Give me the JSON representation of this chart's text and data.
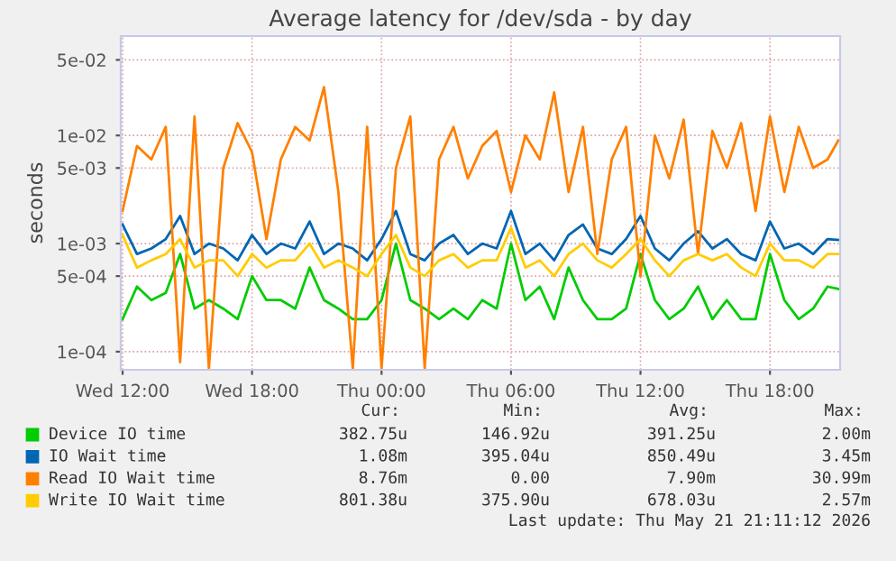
{
  "chart_data": {
    "type": "line",
    "title": "Average latency for /dev/sda - by day",
    "ylabel": "seconds",
    "x": [
      "2026-05-20T12:00",
      "2026-05-20T12:40",
      "2026-05-20T13:20",
      "2026-05-20T14:00",
      "2026-05-20T14:40",
      "2026-05-20T15:20",
      "2026-05-20T16:00",
      "2026-05-20T16:40",
      "2026-05-20T17:20",
      "2026-05-20T18:00",
      "2026-05-20T18:40",
      "2026-05-20T19:20",
      "2026-05-20T20:00",
      "2026-05-20T20:40",
      "2026-05-20T21:20",
      "2026-05-20T22:00",
      "2026-05-20T22:40",
      "2026-05-20T23:20",
      "2026-05-21T00:00",
      "2026-05-21T00:40",
      "2026-05-21T01:20",
      "2026-05-21T02:00",
      "2026-05-21T02:40",
      "2026-05-21T03:20",
      "2026-05-21T04:00",
      "2026-05-21T04:40",
      "2026-05-21T05:20",
      "2026-05-21T06:00",
      "2026-05-21T06:40",
      "2026-05-21T07:20",
      "2026-05-21T08:00",
      "2026-05-21T08:40",
      "2026-05-21T09:20",
      "2026-05-21T10:00",
      "2026-05-21T10:40",
      "2026-05-21T11:20",
      "2026-05-21T12:00",
      "2026-05-21T12:40",
      "2026-05-21T13:20",
      "2026-05-21T14:00",
      "2026-05-21T14:40",
      "2026-05-21T15:20",
      "2026-05-21T16:00",
      "2026-05-21T16:40",
      "2026-05-21T17:20",
      "2026-05-21T18:00",
      "2026-05-21T18:40",
      "2026-05-21T19:20",
      "2026-05-21T20:00",
      "2026-05-21T20:40",
      "2026-05-21T21:10"
    ],
    "series": [
      {
        "name": "Device IO time",
        "color": "#00cc00",
        "values": [
          0.0002,
          0.0004,
          0.0003,
          0.00035,
          0.0008,
          0.00025,
          0.0003,
          0.00025,
          0.0002,
          0.0005,
          0.0003,
          0.0003,
          0.00025,
          0.0006,
          0.0003,
          0.00025,
          0.0002,
          0.0002,
          0.0003,
          0.001,
          0.0003,
          0.00025,
          0.0002,
          0.00025,
          0.0002,
          0.0003,
          0.00025,
          0.001,
          0.0003,
          0.0004,
          0.0002,
          0.0006,
          0.0003,
          0.0002,
          0.0002,
          0.00025,
          0.0008,
          0.0003,
          0.0002,
          0.00025,
          0.0004,
          0.0002,
          0.0003,
          0.0002,
          0.0002,
          0.0008,
          0.0003,
          0.0002,
          0.00025,
          0.0004,
          0.00038
        ]
      },
      {
        "name": "IO Wait time",
        "color": "#0066b3",
        "values": [
          0.0015,
          0.0008,
          0.0009,
          0.0011,
          0.0018,
          0.0008,
          0.001,
          0.0009,
          0.0007,
          0.0012,
          0.0008,
          0.001,
          0.0009,
          0.0016,
          0.0008,
          0.001,
          0.0009,
          0.0007,
          0.0011,
          0.002,
          0.0008,
          0.0007,
          0.001,
          0.0012,
          0.0008,
          0.001,
          0.0009,
          0.002,
          0.0008,
          0.001,
          0.0007,
          0.0012,
          0.0015,
          0.0009,
          0.0008,
          0.0011,
          0.0018,
          0.0009,
          0.0007,
          0.001,
          0.0013,
          0.0009,
          0.0011,
          0.0008,
          0.0007,
          0.0016,
          0.0009,
          0.001,
          0.0008,
          0.0011,
          0.00108
        ]
      },
      {
        "name": "Read IO Wait time",
        "color": "#ff8000",
        "values": [
          0.002,
          0.008,
          0.006,
          0.012,
          8e-05,
          0.015,
          7e-05,
          0.005,
          0.013,
          0.007,
          0.0011,
          0.006,
          0.012,
          0.009,
          0.028,
          0.003,
          7e-05,
          0.012,
          7e-05,
          0.005,
          0.015,
          7e-05,
          0.006,
          0.012,
          0.004,
          0.008,
          0.011,
          0.003,
          0.01,
          0.006,
          0.025,
          0.003,
          0.012,
          0.0008,
          0.006,
          0.012,
          0.0005,
          0.01,
          0.004,
          0.014,
          0.0008,
          0.011,
          0.005,
          0.013,
          0.002,
          0.015,
          0.003,
          0.012,
          0.005,
          0.006,
          0.009
        ]
      },
      {
        "name": "Write IO Wait time",
        "color": "#ffcc00",
        "values": [
          0.0012,
          0.0006,
          0.0007,
          0.0008,
          0.0011,
          0.0006,
          0.0007,
          0.0007,
          0.0005,
          0.0008,
          0.0006,
          0.0007,
          0.0007,
          0.001,
          0.0006,
          0.0007,
          0.0006,
          0.0005,
          0.0008,
          0.0012,
          0.0006,
          0.0005,
          0.0007,
          0.0008,
          0.0006,
          0.0007,
          0.0007,
          0.0014,
          0.0006,
          0.0007,
          0.0005,
          0.0008,
          0.001,
          0.0007,
          0.0006,
          0.0008,
          0.0011,
          0.0007,
          0.0005,
          0.0007,
          0.0008,
          0.0007,
          0.0008,
          0.0006,
          0.0005,
          0.001,
          0.0007,
          0.0007,
          0.0006,
          0.0008,
          0.0008
        ]
      }
    ],
    "log": "y",
    "xlim": [
      "2026-05-20T11:55",
      "2026-05-21T21:15"
    ],
    "ylim": [
      6.8e-05,
      0.083
    ],
    "xticks": [
      {
        "value": "2026-05-20T12:00",
        "label": "Wed 12:00"
      },
      {
        "value": "2026-05-20T18:00",
        "label": "Wed 18:00"
      },
      {
        "value": "2026-05-21T00:00",
        "label": "Thu 00:00"
      },
      {
        "value": "2026-05-21T06:00",
        "label": "Thu 06:00"
      },
      {
        "value": "2026-05-21T12:00",
        "label": "Thu 12:00"
      },
      {
        "value": "2026-05-21T18:00",
        "label": "Thu 18:00"
      }
    ],
    "yticks": [
      {
        "value": 0.0001,
        "label": "1e-04"
      },
      {
        "value": 0.0005,
        "label": "5e-04"
      },
      {
        "value": 0.001,
        "label": "1e-03"
      },
      {
        "value": 0.005,
        "label": "5e-03"
      },
      {
        "value": 0.01,
        "label": "1e-02"
      },
      {
        "value": 0.05,
        "label": "5e-02"
      }
    ],
    "grid": true,
    "legend": "bottom",
    "annotations": [
      "Cur:",
      "Min:",
      "Avg:",
      "Max:",
      "382.75u",
      "146.92u",
      "391.25u",
      "2.00m",
      "1.08m",
      "395.04u",
      "850.49u",
      "3.45m",
      "8.76m",
      "0.00",
      "7.90m",
      "30.99m",
      "801.38u",
      "375.90u",
      "678.03u",
      "2.57m",
      "Last update: Thu May 21 21:11:12 2026"
    ]
  }
}
